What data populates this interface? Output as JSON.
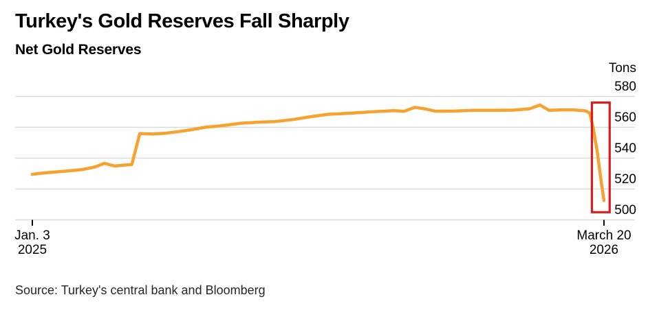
{
  "header": {
    "title": "Turkey's Gold Reserves Fall Sharply",
    "subtitle": "Net Gold Reserves"
  },
  "footer": {
    "source": "Source: Turkey's central bank and Bloomberg"
  },
  "chart_data": {
    "type": "line",
    "title": "Turkey's Gold Reserves Fall Sharply",
    "subtitle": "Net Gold Reserves",
    "unit_label": "Tons",
    "ylabel": "Tons",
    "ylim": [
      500,
      580
    ],
    "yticks": [
      580,
      560,
      540,
      520,
      500
    ],
    "grid": "horizontal",
    "legend": "none",
    "x_ticks": [
      {
        "line1": "Jan. 3",
        "line2": "2025",
        "frac": 0
      },
      {
        "line1": "March 20",
        "line2": "2026",
        "frac": 1
      }
    ],
    "colors": {
      "line": "#F7A22E",
      "annotation": "#E01B1E",
      "grid": "#D8D8D8",
      "tick": "#000000",
      "text": "#000000"
    },
    "series": [
      {
        "name": "Net gold reserves (tons)",
        "color": "#F7A22E",
        "points": [
          [
            0.0,
            529.5
          ],
          [
            0.016,
            530.2
          ],
          [
            0.04,
            531.0
          ],
          [
            0.064,
            531.8
          ],
          [
            0.088,
            532.6
          ],
          [
            0.11,
            534.3
          ],
          [
            0.126,
            536.6
          ],
          [
            0.144,
            534.9
          ],
          [
            0.164,
            535.6
          ],
          [
            0.174,
            535.8
          ],
          [
            0.188,
            555.9
          ],
          [
            0.211,
            555.6
          ],
          [
            0.232,
            556.1
          ],
          [
            0.256,
            557.2
          ],
          [
            0.28,
            558.5
          ],
          [
            0.302,
            560.0
          ],
          [
            0.329,
            560.9
          ],
          [
            0.365,
            562.6
          ],
          [
            0.401,
            563.4
          ],
          [
            0.425,
            563.7
          ],
          [
            0.455,
            565.0
          ],
          [
            0.485,
            566.7
          ],
          [
            0.517,
            568.4
          ],
          [
            0.545,
            568.9
          ],
          [
            0.593,
            570.0
          ],
          [
            0.633,
            570.8
          ],
          [
            0.65,
            570.3
          ],
          [
            0.669,
            572.9
          ],
          [
            0.687,
            571.9
          ],
          [
            0.705,
            570.4
          ],
          [
            0.738,
            570.5
          ],
          [
            0.774,
            571.0
          ],
          [
            0.81,
            571.0
          ],
          [
            0.842,
            571.1
          ],
          [
            0.87,
            572.0
          ],
          [
            0.888,
            574.4
          ],
          [
            0.904,
            571.0
          ],
          [
            0.924,
            571.2
          ],
          [
            0.948,
            571.2
          ],
          [
            0.968,
            570.6
          ],
          [
            0.975,
            569.3
          ],
          [
            0.981,
            560.0
          ],
          [
            0.988,
            545.0
          ],
          [
            0.994,
            528.0
          ],
          [
            1.0,
            512.5
          ]
        ]
      }
    ],
    "annotation_rect": {
      "x0": 0.979,
      "x1": 1.01,
      "y0": 505.0,
      "y1": 576.0,
      "color": "#E01B1E",
      "meaning": "highlights sharp drop at end of series"
    }
  }
}
